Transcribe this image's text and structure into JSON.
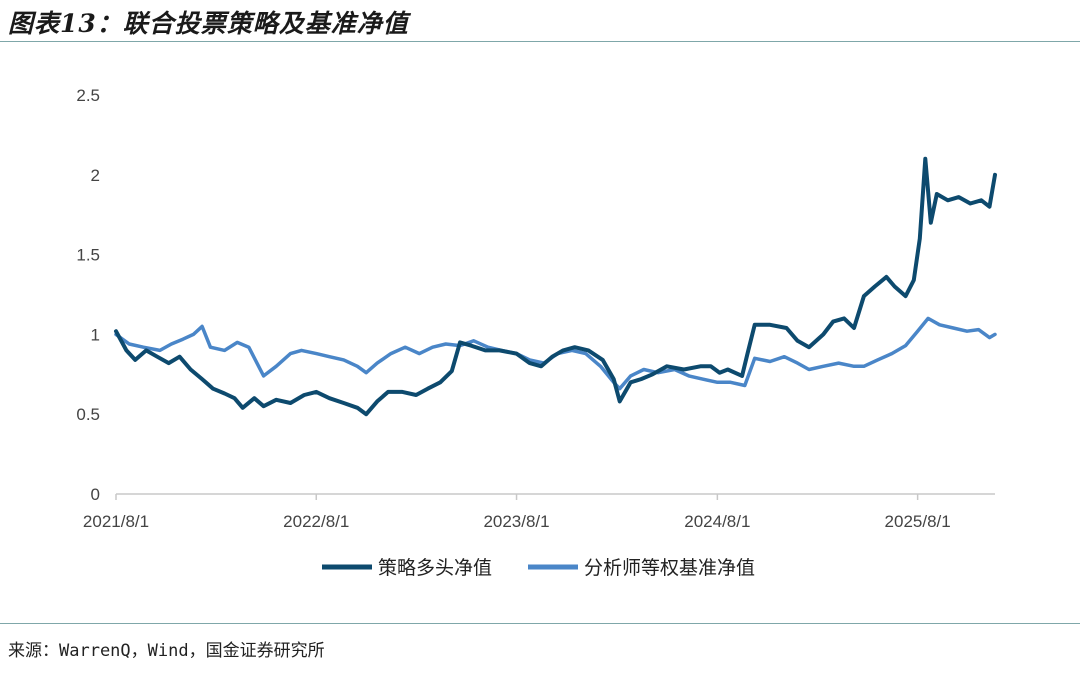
{
  "header": {
    "title": "图表13：联合投票策略及基准净值"
  },
  "footer": {
    "source": "来源：WarrenQ，Wind，国金证券研究所"
  },
  "chart_data": {
    "type": "line",
    "title": "",
    "xlabel": "",
    "ylabel": "",
    "ylim": [
      0,
      2.5
    ],
    "yticks": [
      "0",
      "0.5",
      "1",
      "1.5",
      "2",
      "2.5"
    ],
    "xticks": [
      "2021/8/1",
      "2022/8/1",
      "2023/8/1",
      "2024/8/1",
      "2025/8/1"
    ],
    "xrange": [
      "2021/8/1",
      "2025/12/20"
    ],
    "grid": false,
    "legend_position": "bottom",
    "series": [
      {
        "name": "策略多头净值",
        "color": "#0d4a6e",
        "points": [
          [
            "2021/8/1",
            1.02
          ],
          [
            "2021/8/20",
            0.9
          ],
          [
            "2021/9/5",
            0.84
          ],
          [
            "2021/9/25",
            0.9
          ],
          [
            "2021/10/15",
            0.86
          ],
          [
            "2021/11/5",
            0.82
          ],
          [
            "2021/11/25",
            0.86
          ],
          [
            "2021/12/15",
            0.78
          ],
          [
            "2022/1/5",
            0.72
          ],
          [
            "2022/1/25",
            0.66
          ],
          [
            "2022/2/15",
            0.63
          ],
          [
            "2022/3/5",
            0.6
          ],
          [
            "2022/3/20",
            0.54
          ],
          [
            "2022/4/10",
            0.6
          ],
          [
            "2022/4/27",
            0.55
          ],
          [
            "2022/5/20",
            0.59
          ],
          [
            "2022/6/15",
            0.57
          ],
          [
            "2022/7/10",
            0.62
          ],
          [
            "2022/8/1",
            0.64
          ],
          [
            "2022/8/25",
            0.6
          ],
          [
            "2022/9/20",
            0.57
          ],
          [
            "2022/10/15",
            0.54
          ],
          [
            "2022/10/31",
            0.5
          ],
          [
            "2022/11/20",
            0.58
          ],
          [
            "2022/12/10",
            0.64
          ],
          [
            "2023/1/5",
            0.64
          ],
          [
            "2023/1/30",
            0.62
          ],
          [
            "2023/2/20",
            0.66
          ],
          [
            "2023/3/15",
            0.7
          ],
          [
            "2023/4/5",
            0.77
          ],
          [
            "2023/4/20",
            0.95
          ],
          [
            "2023/5/10",
            0.93
          ],
          [
            "2023/6/5",
            0.9
          ],
          [
            "2023/7/1",
            0.9
          ],
          [
            "2023/8/1",
            0.88
          ],
          [
            "2023/8/25",
            0.82
          ],
          [
            "2023/9/15",
            0.8
          ],
          [
            "2023/10/5",
            0.86
          ],
          [
            "2023/10/25",
            0.9
          ],
          [
            "2023/11/15",
            0.92
          ],
          [
            "2023/12/10",
            0.9
          ],
          [
            "2024/1/5",
            0.84
          ],
          [
            "2024/1/25",
            0.72
          ],
          [
            "2024/2/5",
            0.58
          ],
          [
            "2024/2/25",
            0.7
          ],
          [
            "2024/3/15",
            0.72
          ],
          [
            "2024/4/5",
            0.75
          ],
          [
            "2024/5/1",
            0.8
          ],
          [
            "2024/6/1",
            0.78
          ],
          [
            "2024/7/1",
            0.8
          ],
          [
            "2024/7/20",
            0.8
          ],
          [
            "2024/8/5",
            0.76
          ],
          [
            "2024/8/20",
            0.78
          ],
          [
            "2024/9/15",
            0.74
          ],
          [
            "2024/9/25",
            0.88
          ],
          [
            "2024/10/8",
            1.06
          ],
          [
            "2024/11/5",
            1.06
          ],
          [
            "2024/12/5",
            1.04
          ],
          [
            "2024/12/25",
            0.96
          ],
          [
            "2025/1/15",
            0.92
          ],
          [
            "2025/2/10",
            1.0
          ],
          [
            "2025/2/28",
            1.08
          ],
          [
            "2025/3/20",
            1.1
          ],
          [
            "2025/4/7",
            1.04
          ],
          [
            "2025/4/25",
            1.24
          ],
          [
            "2025/5/15",
            1.3
          ],
          [
            "2025/6/5",
            1.36
          ],
          [
            "2025/6/20",
            1.3
          ],
          [
            "2025/7/10",
            1.24
          ],
          [
            "2025/7/25",
            1.34
          ],
          [
            "2025/8/5",
            1.6
          ],
          [
            "2025/8/15",
            2.1
          ],
          [
            "2025/8/25",
            1.7
          ],
          [
            "2025/9/5",
            1.88
          ],
          [
            "2025/9/25",
            1.84
          ],
          [
            "2025/10/15",
            1.86
          ],
          [
            "2025/11/5",
            1.82
          ],
          [
            "2025/11/25",
            1.84
          ],
          [
            "2025/12/10",
            1.8
          ],
          [
            "2025/12/20",
            2.0
          ]
        ]
      },
      {
        "name": "分析师等权基准净值",
        "color": "#4a86c8",
        "points": [
          [
            "2021/8/1",
            1.0
          ],
          [
            "2021/8/25",
            0.94
          ],
          [
            "2021/9/20",
            0.92
          ],
          [
            "2021/10/20",
            0.9
          ],
          [
            "2021/11/10",
            0.94
          ],
          [
            "2021/12/1",
            0.97
          ],
          [
            "2021/12/20",
            1.0
          ],
          [
            "2022/1/5",
            1.05
          ],
          [
            "2022/1/20",
            0.92
          ],
          [
            "2022/2/15",
            0.9
          ],
          [
            "2022/3/10",
            0.95
          ],
          [
            "2022/3/31",
            0.92
          ],
          [
            "2022/4/27",
            0.74
          ],
          [
            "2022/5/20",
            0.8
          ],
          [
            "2022/6/15",
            0.88
          ],
          [
            "2022/7/5",
            0.9
          ],
          [
            "2022/8/1",
            0.88
          ],
          [
            "2022/8/25",
            0.86
          ],
          [
            "2022/9/20",
            0.84
          ],
          [
            "2022/10/15",
            0.8
          ],
          [
            "2022/10/31",
            0.76
          ],
          [
            "2022/11/20",
            0.82
          ],
          [
            "2022/12/15",
            0.88
          ],
          [
            "2023/1/10",
            0.92
          ],
          [
            "2023/2/5",
            0.88
          ],
          [
            "2023/3/1",
            0.92
          ],
          [
            "2023/3/25",
            0.94
          ],
          [
            "2023/4/20",
            0.93
          ],
          [
            "2023/5/15",
            0.96
          ],
          [
            "2023/6/10",
            0.92
          ],
          [
            "2023/7/5",
            0.9
          ],
          [
            "2023/8/1",
            0.88
          ],
          [
            "2023/8/25",
            0.84
          ],
          [
            "2023/9/20",
            0.82
          ],
          [
            "2023/10/15",
            0.88
          ],
          [
            "2023/11/10",
            0.9
          ],
          [
            "2023/12/5",
            0.88
          ],
          [
            "2024/1/1",
            0.8
          ],
          [
            "2024/1/25",
            0.7
          ],
          [
            "2024/2/5",
            0.66
          ],
          [
            "2024/2/25",
            0.74
          ],
          [
            "2024/3/20",
            0.78
          ],
          [
            "2024/4/15",
            0.76
          ],
          [
            "2024/5/15",
            0.78
          ],
          [
            "2024/6/10",
            0.74
          ],
          [
            "2024/7/5",
            0.72
          ],
          [
            "2024/8/1",
            0.7
          ],
          [
            "2024/8/25",
            0.7
          ],
          [
            "2024/9/20",
            0.68
          ],
          [
            "2024/10/8",
            0.85
          ],
          [
            "2024/11/5",
            0.83
          ],
          [
            "2024/12/1",
            0.86
          ],
          [
            "2024/12/25",
            0.82
          ],
          [
            "2025/1/15",
            0.78
          ],
          [
            "2025/2/10",
            0.8
          ],
          [
            "2025/3/10",
            0.82
          ],
          [
            "2025/4/7",
            0.8
          ],
          [
            "2025/4/25",
            0.8
          ],
          [
            "2025/5/20",
            0.84
          ],
          [
            "2025/6/15",
            0.88
          ],
          [
            "2025/7/10",
            0.93
          ],
          [
            "2025/8/1",
            1.02
          ],
          [
            "2025/8/20",
            1.1
          ],
          [
            "2025/9/10",
            1.06
          ],
          [
            "2025/10/5",
            1.04
          ],
          [
            "2025/10/30",
            1.02
          ],
          [
            "2025/11/20",
            1.03
          ],
          [
            "2025/12/10",
            0.98
          ],
          [
            "2025/12/20",
            1.0
          ]
        ]
      }
    ]
  }
}
